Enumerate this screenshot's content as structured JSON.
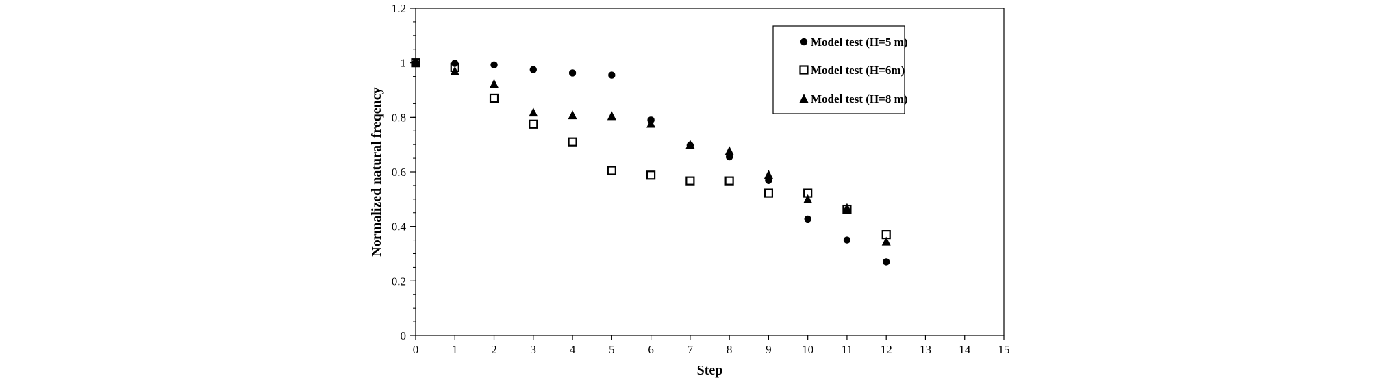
{
  "chart_data": {
    "type": "scatter",
    "xlabel": "Step",
    "ylabel": "Normalized natural freqency",
    "xlim": [
      0,
      15
    ],
    "ylim": [
      0,
      1.2
    ],
    "xticks": [
      "0",
      "1",
      "2",
      "3",
      "4",
      "5",
      "6",
      "7",
      "8",
      "9",
      "10",
      "11",
      "12",
      "13",
      "14",
      "15"
    ],
    "yticks": [
      "0",
      "0.2",
      "0.4",
      "0.6",
      "0.8",
      "1",
      "1.2"
    ],
    "grid": false,
    "legend_position": "top-right",
    "series": [
      {
        "name": "Model test (H=5 m)",
        "marker": "filled-circle",
        "color": "#000000",
        "x": [
          0,
          1,
          2,
          3,
          4,
          5,
          6,
          7,
          8,
          9,
          10,
          11,
          12
        ],
        "y": [
          1.0,
          0.998,
          0.992,
          0.975,
          0.963,
          0.955,
          0.79,
          0.697,
          0.655,
          0.568,
          0.427,
          0.35,
          0.27
        ]
      },
      {
        "name": "Model test (H=6m)",
        "marker": "hollow-square",
        "color": "#000000",
        "x": [
          0,
          1,
          2,
          3,
          4,
          5,
          6,
          7,
          8,
          9,
          10,
          11,
          12
        ],
        "y": [
          1.0,
          0.983,
          0.87,
          0.775,
          0.71,
          0.605,
          0.588,
          0.567,
          0.567,
          0.522,
          0.522,
          0.463,
          0.37
        ]
      },
      {
        "name": "Model test (H=8 m)",
        "marker": "filled-triangle",
        "color": "#000000",
        "x": [
          0,
          1,
          2,
          3,
          4,
          5,
          6,
          7,
          8,
          9,
          10,
          11,
          12
        ],
        "y": [
          1.0,
          0.97,
          0.923,
          0.818,
          0.808,
          0.805,
          0.777,
          0.7,
          0.677,
          0.59,
          0.5,
          0.468,
          0.345
        ]
      }
    ]
  }
}
